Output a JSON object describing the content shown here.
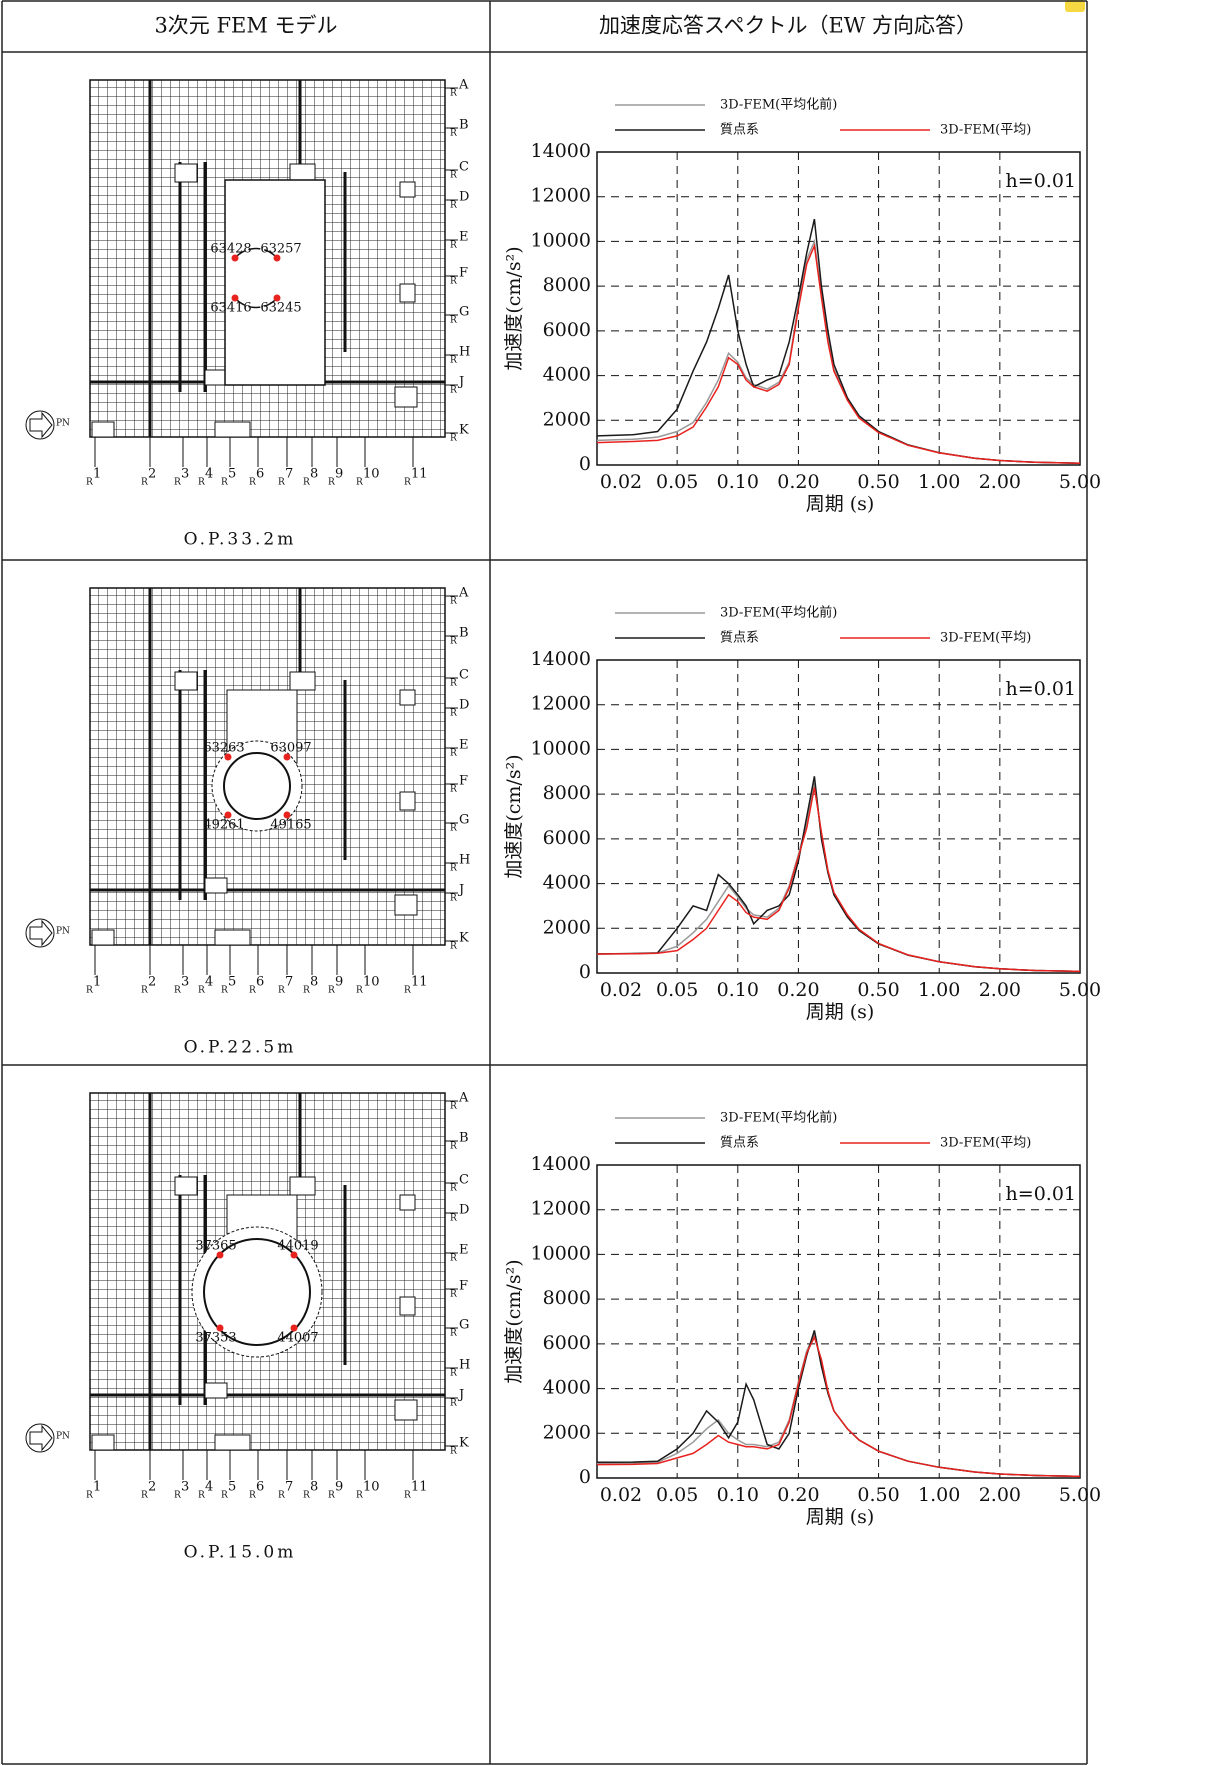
{
  "table": {
    "headers": [
      "3次元 FEM モデル",
      "加速度応答スペクトル（EW 方向応答）"
    ],
    "rows": [
      {
        "caption": "O.P.33.2m",
        "nodes": [
          "63428",
          "63257",
          "63416",
          "63245"
        ]
      },
      {
        "caption": "O.P.22.5m",
        "nodes": [
          "63263",
          "63097",
          "49261",
          "49165"
        ]
      },
      {
        "caption": "O.P.15.0m",
        "nodes": [
          "37365",
          "44019",
          "37353",
          "44007"
        ]
      }
    ]
  },
  "model_labels": {
    "subscript": "R",
    "rows": [
      "A",
      "B",
      "C",
      "D",
      "E",
      "F",
      "G",
      "H",
      "J",
      "K"
    ],
    "columns": [
      "1",
      "2",
      "3",
      "4",
      "5",
      "6",
      "7",
      "8",
      "9",
      "10",
      "11"
    ],
    "north": "PN"
  },
  "chart_data": [
    {
      "type": "line",
      "xlabel": "周期 (s)",
      "ylabel": "加速度(cm/s²)",
      "annotation": "h=0.01",
      "log_x": true,
      "grid": true,
      "x": [
        0.02,
        0.03,
        0.04,
        0.05,
        0.06,
        0.07,
        0.08,
        0.09,
        0.1,
        0.11,
        0.12,
        0.14,
        0.16,
        0.18,
        0.2,
        0.22,
        0.24,
        0.26,
        0.28,
        0.3,
        0.35,
        0.4,
        0.5,
        0.7,
        1,
        1.5,
        2,
        3,
        5
      ],
      "xlim": [
        0.02,
        5
      ],
      "xticks": [
        0.02,
        0.05,
        {
          "value": 0.1,
          "label": "0.10"
        },
        {
          "value": 0.2,
          "label": "0.20"
        },
        {
          "value": 0.5,
          "label": "0.50"
        },
        {
          "value": 1,
          "label": "1.00"
        },
        {
          "value": 2,
          "label": "2.00"
        },
        {
          "value": 5,
          "label": "5.00"
        }
      ],
      "ylim": [
        0,
        14000
      ],
      "yticks": [
        0,
        2000,
        4000,
        6000,
        8000,
        10000,
        12000,
        14000
      ],
      "series": [
        {
          "name": "3D-FEM(平均化前)",
          "color": "#999999",
          "values": [
            1100,
            1150,
            1250,
            1500,
            1900,
            2800,
            3800,
            5000,
            4600,
            3900,
            3600,
            3400,
            3700,
            4600,
            7200,
            9200,
            10000,
            7600,
            5600,
            4300,
            3000,
            2150,
            1480,
            890,
            545,
            300,
            200,
            120,
            80
          ]
        },
        {
          "name": "質点系",
          "color": "#1a1a1a",
          "values": [
            1300,
            1350,
            1500,
            2500,
            4200,
            5500,
            7000,
            8500,
            6000,
            4500,
            3500,
            3800,
            4000,
            5500,
            7500,
            9500,
            11000,
            8000,
            6000,
            4500,
            3000,
            2200,
            1500,
            900,
            550,
            300,
            200,
            120,
            80
          ]
        },
        {
          "name": "3D-FEM(平均)",
          "color": "#e8231f",
          "values": [
            1000,
            1050,
            1100,
            1300,
            1700,
            2600,
            3500,
            4800,
            4500,
            3800,
            3500,
            3300,
            3600,
            4500,
            7000,
            9000,
            9800,
            7500,
            5500,
            4200,
            2900,
            2100,
            1450,
            880,
            540,
            300,
            200,
            120,
            80
          ]
        }
      ]
    },
    {
      "type": "line",
      "xlabel": "周期 (s)",
      "ylabel": "加速度(cm/s²)",
      "annotation": "h=0.01",
      "log_x": true,
      "grid": true,
      "x": [
        0.02,
        0.03,
        0.04,
        0.05,
        0.06,
        0.07,
        0.08,
        0.09,
        0.1,
        0.11,
        0.12,
        0.14,
        0.16,
        0.18,
        0.2,
        0.22,
        0.24,
        0.26,
        0.28,
        0.3,
        0.35,
        0.4,
        0.5,
        0.7,
        1,
        1.5,
        2,
        3,
        5
      ],
      "xlim": [
        0.02,
        5
      ],
      "xticks": [
        0.02,
        0.05,
        {
          "value": 0.1,
          "label": "0.10"
        },
        {
          "value": 0.2,
          "label": "0.20"
        },
        {
          "value": 0.5,
          "label": "0.50"
        },
        {
          "value": 1,
          "label": "1.00"
        },
        {
          "value": 2,
          "label": "2.00"
        },
        {
          "value": 5,
          "label": "5.00"
        }
      ],
      "ylim": [
        0,
        14000
      ],
      "yticks": [
        0,
        2000,
        4000,
        6000,
        8000,
        10000,
        12000,
        14000
      ],
      "series": [
        {
          "name": "3D-FEM(平均化前)",
          "color": "#999999",
          "values": [
            850,
            865,
            890,
            1200,
            1800,
            2400,
            3200,
            3900,
            3400,
            2900,
            2600,
            2500,
            2900,
            3900,
            5300,
            6700,
            8500,
            6200,
            4500,
            3550,
            2550,
            1920,
            1310,
            805,
            500,
            282,
            190,
            110,
            70
          ]
        },
        {
          "name": "質点系",
          "color": "#1a1a1a",
          "values": [
            850,
            870,
            900,
            2000,
            3000,
            2800,
            4400,
            4000,
            3500,
            3000,
            2200,
            2800,
            3000,
            3500,
            5000,
            7000,
            8800,
            6000,
            4500,
            3500,
            2500,
            1900,
            1300,
            800,
            500,
            280,
            190,
            110,
            70
          ]
        },
        {
          "name": "3D-FEM(平均)",
          "color": "#e8231f",
          "values": [
            850,
            860,
            880,
            1000,
            1500,
            2000,
            2800,
            3500,
            3200,
            2700,
            2500,
            2400,
            2800,
            3800,
            5200,
            6500,
            8300,
            6300,
            4600,
            3600,
            2600,
            1950,
            1320,
            810,
            505,
            285,
            190,
            110,
            70
          ]
        }
      ]
    },
    {
      "type": "line",
      "xlabel": "周期 (s)",
      "ylabel": "加速度(cm/s²)",
      "annotation": "h=0.01",
      "log_x": true,
      "grid": true,
      "x": [
        0.02,
        0.03,
        0.04,
        0.05,
        0.06,
        0.07,
        0.08,
        0.09,
        0.1,
        0.11,
        0.12,
        0.14,
        0.16,
        0.18,
        0.2,
        0.22,
        0.24,
        0.26,
        0.28,
        0.3,
        0.35,
        0.4,
        0.5,
        0.7,
        1,
        1.5,
        2,
        3,
        5
      ],
      "xlim": [
        0.02,
        5
      ],
      "xticks": [
        0.02,
        0.05,
        {
          "value": 0.1,
          "label": "0.10"
        },
        {
          "value": 0.2,
          "label": "0.20"
        },
        {
          "value": 0.5,
          "label": "0.50"
        },
        {
          "value": 1,
          "label": "1.00"
        },
        {
          "value": 2,
          "label": "2.00"
        },
        {
          "value": 5,
          "label": "5.00"
        }
      ],
      "ylim": [
        0,
        14000
      ],
      "yticks": [
        0,
        2000,
        4000,
        6000,
        8000,
        10000,
        12000,
        14000
      ],
      "series": [
        {
          "name": "3D-FEM(平均化前)",
          "color": "#999999",
          "values": [
            650,
            660,
            700,
            1100,
            1600,
            2200,
            2600,
            2000,
            1700,
            1500,
            1500,
            1400,
            1600,
            2600,
            4300,
            5700,
            6400,
            5100,
            3800,
            3000,
            2200,
            1700,
            1200,
            750,
            480,
            270,
            180,
            110,
            70
          ]
        },
        {
          "name": "質点系",
          "color": "#1a1a1a",
          "values": [
            700,
            710,
            750,
            1300,
            2000,
            3000,
            2500,
            1800,
            2500,
            4200,
            3500,
            1500,
            1300,
            2000,
            4000,
            5500,
            6600,
            5000,
            3800,
            3000,
            2200,
            1700,
            1200,
            750,
            480,
            270,
            180,
            110,
            70
          ]
        },
        {
          "name": "3D-FEM(平均)",
          "color": "#e8231f",
          "values": [
            600,
            610,
            650,
            900,
            1100,
            1500,
            1900,
            1600,
            1500,
            1400,
            1400,
            1300,
            1500,
            2500,
            4200,
            5600,
            6300,
            5300,
            3900,
            3000,
            2200,
            1700,
            1200,
            750,
            480,
            270,
            180,
            110,
            70
          ]
        }
      ]
    }
  ]
}
